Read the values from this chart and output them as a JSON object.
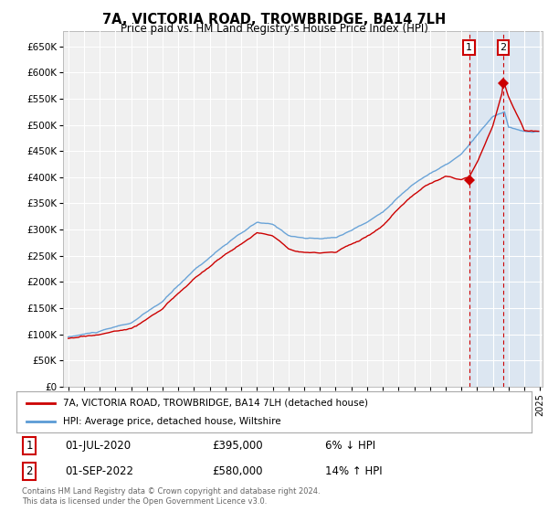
{
  "title": "7A, VICTORIA ROAD, TROWBRIDGE, BA14 7LH",
  "subtitle": "Price paid vs. HM Land Registry's House Price Index (HPI)",
  "red_label": "7A, VICTORIA ROAD, TROWBRIDGE, BA14 7LH (detached house)",
  "blue_label": "HPI: Average price, detached house, Wiltshire",
  "footer": "Contains HM Land Registry data © Crown copyright and database right 2024.\nThis data is licensed under the Open Government Licence v3.0.",
  "sale1_date": "01-JUL-2020",
  "sale1_price": "£395,000",
  "sale1_hpi": "6% ↓ HPI",
  "sale2_date": "01-SEP-2022",
  "sale2_price": "£580,000",
  "sale2_hpi": "14% ↑ HPI",
  "ylim": [
    0,
    680000
  ],
  "yticks": [
    0,
    50000,
    100000,
    150000,
    200000,
    250000,
    300000,
    350000,
    400000,
    450000,
    500000,
    550000,
    600000,
    650000
  ],
  "background_color": "#ffffff",
  "plot_bg": "#f0f0f0",
  "grid_color": "#ffffff",
  "highlight_color": "#dce6f1",
  "red_color": "#cc0000",
  "blue_color": "#5b9bd5",
  "sale1_price_val": 395000,
  "sale2_price_val": 580000
}
